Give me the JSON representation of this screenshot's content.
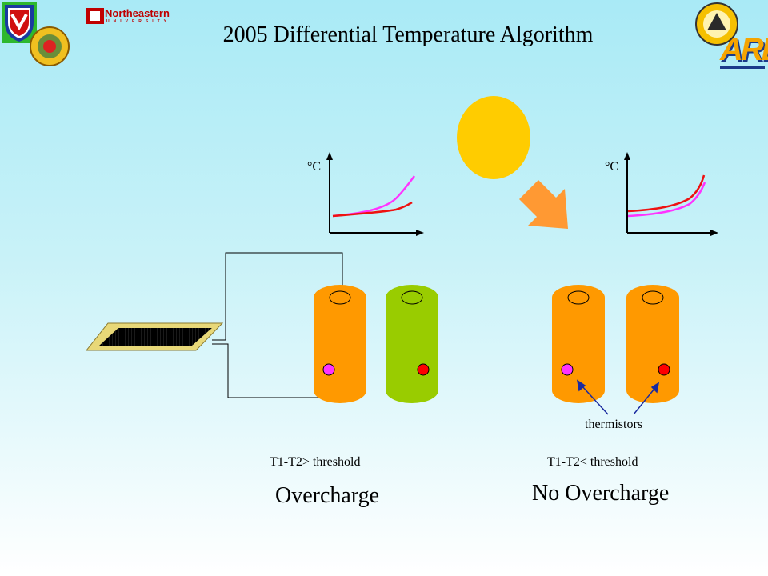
{
  "title": "2005 Differential Temperature Algorithm",
  "logos": {
    "northeastern_name": "Northeastern",
    "northeastern_sub": "UNIVERSITY",
    "arl": "ARL"
  },
  "graph_unit": "°C",
  "condition_left": "T1-T2> threshold",
  "condition_right": "T1-T2< threshold",
  "result_left": "Overcharge",
  "result_right": "No Overcharge",
  "thermistors_label": "thermistors",
  "colors": {
    "cell_orange": "#ff9900",
    "cell_green": "#99cc00",
    "sun": "#ffcc00",
    "arrow": "#ff9933",
    "thermistor_hot": "#ff33ff",
    "thermistor_cold": "#ff0000"
  }
}
